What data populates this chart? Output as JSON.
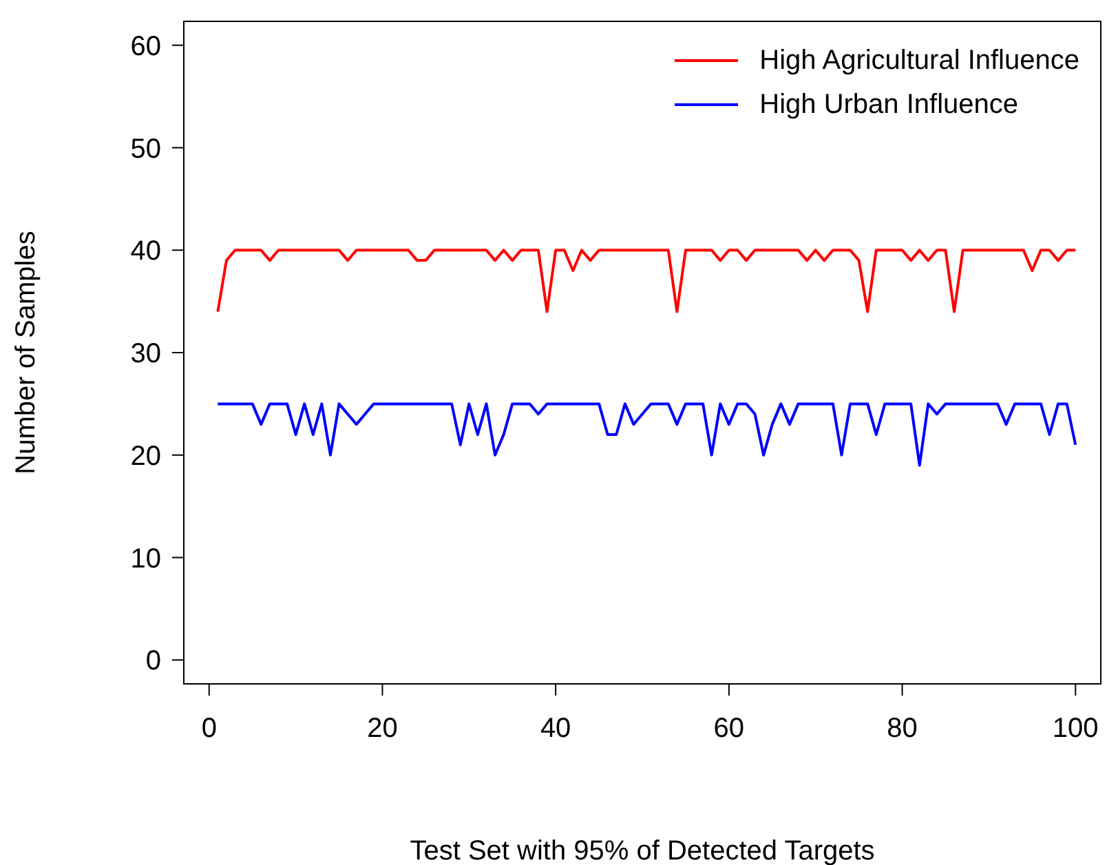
{
  "chart_data": {
    "type": "line",
    "xlabel": "Test Set with 95% of Detected Targets",
    "ylabel": "Number of Samples",
    "x": [
      1,
      2,
      3,
      4,
      5,
      6,
      7,
      8,
      9,
      10,
      11,
      12,
      13,
      14,
      15,
      16,
      17,
      18,
      19,
      20,
      21,
      22,
      23,
      24,
      25,
      26,
      27,
      28,
      29,
      30,
      31,
      32,
      33,
      34,
      35,
      36,
      37,
      38,
      39,
      40,
      41,
      42,
      43,
      44,
      45,
      46,
      47,
      48,
      49,
      50,
      51,
      52,
      53,
      54,
      55,
      56,
      57,
      58,
      59,
      60,
      61,
      62,
      63,
      64,
      65,
      66,
      67,
      68,
      69,
      70,
      71,
      72,
      73,
      74,
      75,
      76,
      77,
      78,
      79,
      80,
      81,
      82,
      83,
      84,
      85,
      86,
      87,
      88,
      89,
      90,
      91,
      92,
      93,
      94,
      95,
      96,
      97,
      98,
      99,
      100
    ],
    "series": [
      {
        "name": "High Agricultural Influence",
        "color": "#ff0000",
        "values": [
          34,
          39,
          40,
          40,
          40,
          40,
          39,
          40,
          40,
          40,
          40,
          40,
          40,
          40,
          40,
          39,
          40,
          40,
          40,
          40,
          40,
          40,
          40,
          39,
          39,
          40,
          40,
          40,
          40,
          40,
          40,
          40,
          39,
          40,
          39,
          40,
          40,
          40,
          34,
          40,
          40,
          38,
          40,
          39,
          40,
          40,
          40,
          40,
          40,
          40,
          40,
          40,
          40,
          34,
          40,
          40,
          40,
          40,
          39,
          40,
          40,
          39,
          40,
          40,
          40,
          40,
          40,
          40,
          39,
          40,
          39,
          40,
          40,
          40,
          39,
          34,
          40,
          40,
          40,
          40,
          39,
          40,
          39,
          40,
          40,
          34,
          40,
          40,
          40,
          40,
          40,
          40,
          40,
          40,
          38,
          40,
          40,
          39,
          40,
          40
        ]
      },
      {
        "name": "High Urban Influence",
        "color": "#0000ff",
        "values": [
          25,
          25,
          25,
          25,
          25,
          23,
          25,
          25,
          25,
          22,
          25,
          22,
          25,
          20,
          25,
          24,
          23,
          24,
          25,
          25,
          25,
          25,
          25,
          25,
          25,
          25,
          25,
          25,
          21,
          25,
          22,
          25,
          20,
          22,
          25,
          25,
          25,
          24,
          25,
          25,
          25,
          25,
          25,
          25,
          25,
          22,
          22,
          25,
          23,
          24,
          25,
          25,
          25,
          23,
          25,
          25,
          25,
          20,
          25,
          23,
          25,
          25,
          24,
          20,
          23,
          25,
          23,
          25,
          25,
          25,
          25,
          25,
          20,
          25,
          25,
          25,
          22,
          25,
          25,
          25,
          25,
          19,
          25,
          24,
          25,
          25,
          25,
          25,
          25,
          25,
          25,
          23,
          25,
          25,
          25,
          25,
          22,
          25,
          25,
          21
        ]
      }
    ],
    "xlim": [
      -3,
      103
    ],
    "xticks": [
      0,
      20,
      40,
      60,
      80,
      100
    ],
    "ylim": [
      -2.4,
      62.4
    ],
    "yticks": [
      0,
      10,
      20,
      30,
      40,
      50,
      60
    ],
    "grid": false,
    "legend": "top right",
    "marker": "none",
    "line_style": "solid"
  }
}
